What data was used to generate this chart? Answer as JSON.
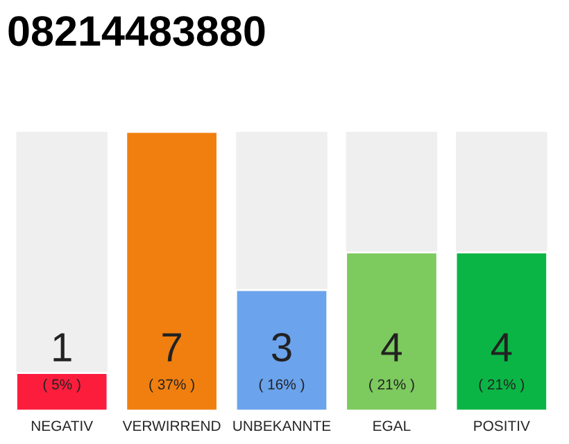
{
  "chart_data": {
    "type": "bar",
    "title": "08214483880",
    "categories": [
      "NEGATIV",
      "VERWIRREND",
      "UNBEKANNTE",
      "EGAL",
      "POSITIV"
    ],
    "values": [
      5,
      37,
      16,
      21,
      21
    ],
    "colors": [
      "#fc1d3d",
      "#f07f0f",
      "#6ba3ec",
      "#7dca5f",
      "#0bb545"
    ],
    "value_labels": [
      "1\n( 5% )",
      "7\n( 37% )",
      "3\n( 16% )",
      "4\n( 21% )",
      "4\n( 21% )"
    ],
    "tick_labels": "x",
    "grid": false,
    "legend": false
  }
}
